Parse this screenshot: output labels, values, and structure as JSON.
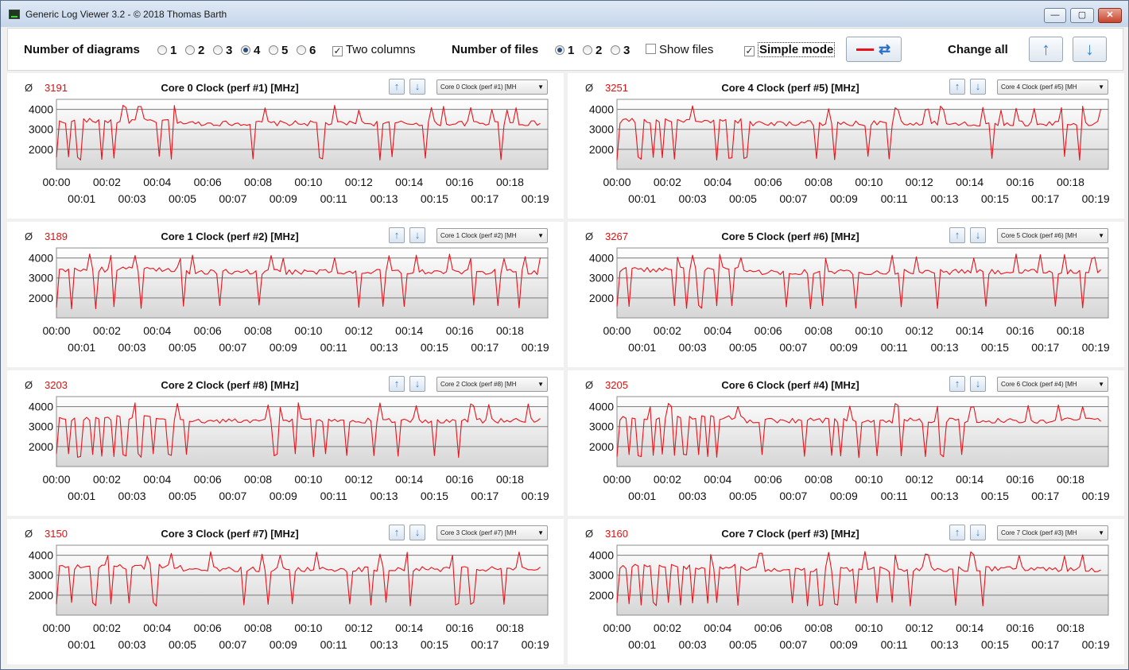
{
  "window": {
    "title": "Generic Log Viewer 3.2 - © 2018 Thomas Barth",
    "minimize_label": "—",
    "maximize_label": "▢",
    "close_label": "✕"
  },
  "toolbar": {
    "number_of_diagrams_label": "Number of diagrams",
    "diagram_options": [
      "1",
      "2",
      "3",
      "4",
      "5",
      "6"
    ],
    "diagram_selected": "4",
    "two_columns_label": "Two columns",
    "two_columns_checked": true,
    "number_of_files_label": "Number of files",
    "file_options": [
      "1",
      "2",
      "3"
    ],
    "file_selected": "1",
    "show_files_label": "Show files",
    "show_files_checked": false,
    "simple_mode_label": "Simple mode",
    "simple_mode_checked": true,
    "change_all_label": "Change all",
    "line_color": "#e8131b"
  },
  "panels": [
    {
      "avg_symbol": "Ø",
      "avg": "3191",
      "title": "Core 0 Clock (perf #1) [MHz]",
      "combo": "Core 0 Clock (perf #1) [MH"
    },
    {
      "avg_symbol": "Ø",
      "avg": "3251",
      "title": "Core 4 Clock (perf #5) [MHz]",
      "combo": "Core 4 Clock (perf #5) [MH"
    },
    {
      "avg_symbol": "Ø",
      "avg": "3189",
      "title": "Core 1 Clock (perf #2) [MHz]",
      "combo": "Core 1 Clock (perf #2) [MH"
    },
    {
      "avg_symbol": "Ø",
      "avg": "3267",
      "title": "Core 5 Clock (perf #6) [MHz]",
      "combo": "Core 5 Clock (perf #6) [MH"
    },
    {
      "avg_symbol": "Ø",
      "avg": "3203",
      "title": "Core 2 Clock (perf #8) [MHz]",
      "combo": "Core 2 Clock (perf #8) [MH"
    },
    {
      "avg_symbol": "Ø",
      "avg": "3205",
      "title": "Core 6 Clock (perf #4) [MHz]",
      "combo": "Core 6 Clock (perf #4) [MH"
    },
    {
      "avg_symbol": "Ø",
      "avg": "3150",
      "title": "Core 3 Clock (perf #7) [MHz]",
      "combo": "Core 3 Clock (perf #7) [MH"
    },
    {
      "avg_symbol": "Ø",
      "avg": "3160",
      "title": "Core 7 Clock (perf #3) [MHz]",
      "combo": "Core 7 Clock (perf #3) [MH"
    }
  ],
  "chart_data": {
    "type": "line",
    "yticks": [
      "4000",
      "3000",
      "2000"
    ],
    "ytick_values": [
      4000,
      3000,
      2000
    ],
    "ylim": [
      1000,
      4500
    ],
    "xlim_minutes": [
      0,
      19.5
    ],
    "xticks_even": [
      "00:00",
      "00:02",
      "00:04",
      "00:06",
      "00:08",
      "00:10",
      "00:12",
      "00:14",
      "00:16",
      "00:18"
    ],
    "xticks_odd": [
      "00:01",
      "00:03",
      "00:05",
      "00:07",
      "00:09",
      "00:11",
      "00:13",
      "00:15",
      "00:17",
      "00:19"
    ],
    "series_color": "#e8131b",
    "baseline_mhz": 3300,
    "series": [
      {
        "min": [
          0.0,
          0.5,
          0.9,
          1.8,
          2.3,
          4.1,
          4.6,
          7.8,
          10.5,
          12.8,
          13.3,
          14.6,
          17.6
        ],
        "high": [
          2.7,
          3.3,
          4.7,
          8.3,
          11.0,
          12.0,
          14.9,
          15.4,
          16.4,
          17.3,
          17.9,
          18.2
        ]
      },
      {
        "min": [
          0.0,
          0.9,
          1.4,
          1.8,
          2.3,
          4.0,
          4.5,
          5.1,
          7.9,
          8.6,
          10.0,
          10.8,
          14.9,
          17.8,
          18.4
        ],
        "high": [
          2.3,
          3.0,
          4.6,
          8.4,
          11.1,
          12.3,
          12.9,
          14.5,
          15.2,
          15.8,
          16.6,
          17.6,
          18.5,
          19.2
        ]
      },
      {
        "min": [
          0.0,
          0.6,
          1.6,
          2.3,
          3.4,
          5.0,
          6.5,
          8.0,
          12.0,
          13.0,
          13.8,
          16.6,
          17.5,
          18.4
        ],
        "high": [
          1.3,
          2.2,
          3.1,
          4.9,
          5.4,
          8.5,
          9.0,
          11.0,
          13.2,
          14.3,
          15.6,
          16.4,
          17.8,
          18.6,
          19.2
        ]
      },
      {
        "min": [
          0.0,
          0.5,
          2.3,
          2.8,
          3.3,
          4.0,
          4.6,
          6.7,
          7.7,
          8.2,
          9.5,
          11.3,
          12.7,
          14.6,
          17.4,
          18.5
        ],
        "high": [
          2.4,
          3.0,
          4.1,
          4.9,
          8.3,
          10.9,
          11.9,
          14.2,
          15.8,
          16.8,
          17.8,
          18.9
        ]
      },
      {
        "min": [
          0.0,
          0.5,
          0.9,
          1.4,
          1.8,
          2.3,
          2.7,
          3.3,
          3.8,
          4.5,
          5.2,
          8.7,
          9.5,
          10.2,
          10.7,
          11.5,
          12.6,
          13.6,
          15.0,
          16.0
        ],
        "high": [
          1.0,
          2.3,
          3.1,
          4.8,
          8.4,
          8.9,
          9.6,
          12.8,
          14.3,
          16.5,
          17.2,
          18.7
        ]
      },
      {
        "min": [
          0.0,
          0.5,
          0.9,
          1.4,
          1.8,
          2.3,
          2.7,
          3.2,
          3.6,
          4.0,
          5.8,
          7.4,
          8.5,
          8.9,
          9.6,
          10.3,
          11.3,
          12.2,
          12.9,
          13.7
        ],
        "high": [
          1.3,
          2.1,
          3.2,
          4.8,
          8.5,
          9.2,
          11.1,
          12.7,
          14.1,
          16.3,
          17.5,
          18.5
        ]
      },
      {
        "min": [
          0.0,
          0.6,
          1.5,
          2.2,
          2.9,
          3.9,
          7.4,
          8.4,
          9.4,
          11.6,
          12.5,
          13.1,
          14.0,
          15.9,
          16.5,
          17.8
        ],
        "high": [
          2.1,
          3.6,
          4.6,
          6.1,
          8.2,
          8.9,
          10.3,
          11.6,
          12.8,
          13.9,
          15.7,
          16.4,
          18.4
        ]
      },
      {
        "min": [
          0.0,
          0.5,
          1.0,
          1.5,
          2.0,
          2.5,
          3.0,
          3.6,
          4.0,
          4.8,
          7.0,
          7.6,
          8.1,
          8.7,
          9.5,
          10.3,
          10.9,
          11.6,
          13.4,
          14.5
        ],
        "high": [
          1.4,
          3.7,
          5.7,
          8.4,
          9.8,
          11.0,
          12.3,
          14.1,
          16.0,
          17.8,
          18.5
        ]
      }
    ]
  }
}
